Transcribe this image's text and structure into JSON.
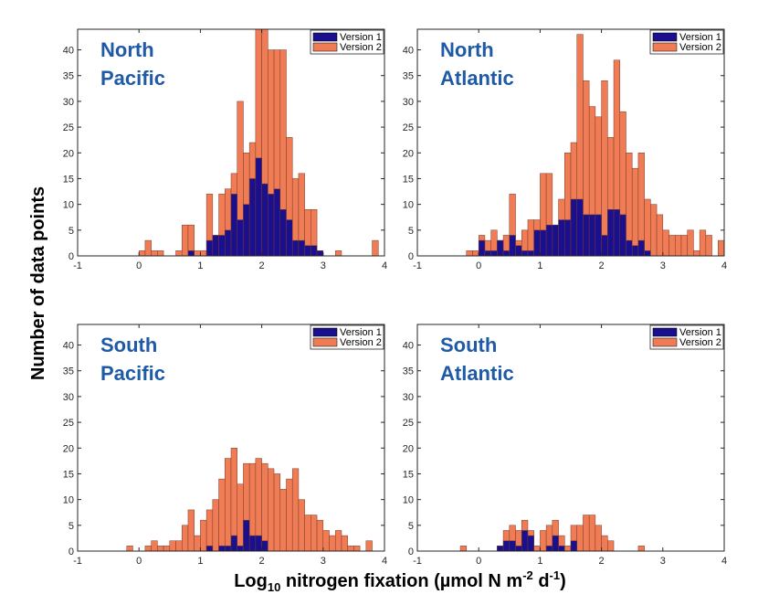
{
  "figure": {
    "ylabel": "Number of data points",
    "xlabel_prefix": "Log",
    "xlabel_sub": "10",
    "xlabel_mid": " nitrogen fixation (µmol N m",
    "xlabel_sup1": "-2",
    "xlabel_mid2": " d",
    "xlabel_sup2": "-1",
    "xlabel_end": ")"
  },
  "colors": {
    "version1": "#1a0f8c",
    "version2": "#f07c55",
    "bar_edge": "#7a3b28",
    "region_title": "#1f5aa6"
  },
  "legend": {
    "version1": "Version 1",
    "version2": "Version 2"
  },
  "chart_data": [
    {
      "type": "bar",
      "title_line1": "North",
      "title_line2": "Pacific",
      "xlim": [
        -1,
        4
      ],
      "ylim": [
        0,
        44
      ],
      "bin_width": 0.1,
      "xticks": [
        "-1",
        "0",
        "1",
        "2",
        "3",
        "4"
      ],
      "yticks": [
        "0",
        "5",
        "10",
        "15",
        "20",
        "25",
        "30",
        "35",
        "40"
      ],
      "series": [
        {
          "name": "Version 2",
          "bins": [
            [
              0.0,
              1
            ],
            [
              0.1,
              3
            ],
            [
              0.2,
              1
            ],
            [
              0.3,
              1
            ],
            [
              0.6,
              1
            ],
            [
              0.7,
              6
            ],
            [
              0.8,
              6
            ],
            [
              0.9,
              1
            ],
            [
              1.0,
              1
            ],
            [
              1.1,
              12
            ],
            [
              1.2,
              4
            ],
            [
              1.3,
              12
            ],
            [
              1.4,
              13
            ],
            [
              1.5,
              16
            ],
            [
              1.6,
              30
            ],
            [
              1.7,
              20
            ],
            [
              1.8,
              22
            ],
            [
              1.9,
              44
            ],
            [
              2.0,
              44
            ],
            [
              2.1,
              40
            ],
            [
              2.2,
              40
            ],
            [
              2.3,
              40
            ],
            [
              2.4,
              23
            ],
            [
              2.5,
              15
            ],
            [
              2.6,
              16
            ],
            [
              2.7,
              9
            ],
            [
              2.8,
              9
            ],
            [
              2.9,
              1
            ],
            [
              3.2,
              1
            ],
            [
              3.8,
              3
            ]
          ]
        },
        {
          "name": "Version 1",
          "bins": [
            [
              0.8,
              1
            ],
            [
              1.1,
              3
            ],
            [
              1.2,
              4
            ],
            [
              1.3,
              4
            ],
            [
              1.4,
              5
            ],
            [
              1.5,
              12
            ],
            [
              1.6,
              7
            ],
            [
              1.7,
              10
            ],
            [
              1.8,
              15
            ],
            [
              1.9,
              19
            ],
            [
              2.0,
              14
            ],
            [
              2.1,
              12
            ],
            [
              2.2,
              13
            ],
            [
              2.3,
              9
            ],
            [
              2.4,
              7
            ],
            [
              2.5,
              3
            ],
            [
              2.6,
              3
            ],
            [
              2.7,
              2
            ],
            [
              2.8,
              2
            ],
            [
              2.9,
              1
            ]
          ]
        }
      ]
    },
    {
      "type": "bar",
      "title_line1": "North",
      "title_line2": "Atlantic",
      "xlim": [
        -1,
        4
      ],
      "ylim": [
        0,
        44
      ],
      "bin_width": 0.1,
      "xticks": [
        "-1",
        "0",
        "1",
        "2",
        "3",
        "4"
      ],
      "yticks": [
        "0",
        "5",
        "10",
        "15",
        "20",
        "25",
        "30",
        "35",
        "40"
      ],
      "series": [
        {
          "name": "Version 2",
          "bins": [
            [
              -0.2,
              1
            ],
            [
              -0.1,
              1
            ],
            [
              0.0,
              4
            ],
            [
              0.1,
              3
            ],
            [
              0.2,
              5
            ],
            [
              0.3,
              3
            ],
            [
              0.4,
              4
            ],
            [
              0.5,
              12
            ],
            [
              0.6,
              3
            ],
            [
              0.7,
              5
            ],
            [
              0.8,
              7
            ],
            [
              0.9,
              7
            ],
            [
              1.0,
              16
            ],
            [
              1.1,
              16
            ],
            [
              1.2,
              6
            ],
            [
              1.3,
              11
            ],
            [
              1.4,
              20
            ],
            [
              1.5,
              22
            ],
            [
              1.6,
              43
            ],
            [
              1.7,
              34
            ],
            [
              1.8,
              29
            ],
            [
              1.9,
              27
            ],
            [
              2.0,
              34
            ],
            [
              2.1,
              23
            ],
            [
              2.2,
              38
            ],
            [
              2.3,
              28
            ],
            [
              2.4,
              20
            ],
            [
              2.5,
              17
            ],
            [
              2.6,
              20
            ],
            [
              2.7,
              11
            ],
            [
              2.8,
              10
            ],
            [
              2.9,
              8
            ],
            [
              3.0,
              5
            ],
            [
              3.1,
              4
            ],
            [
              3.2,
              4
            ],
            [
              3.3,
              4
            ],
            [
              3.4,
              5
            ],
            [
              3.5,
              1
            ],
            [
              3.6,
              5
            ],
            [
              3.7,
              4
            ],
            [
              3.9,
              3
            ]
          ]
        },
        {
          "name": "Version 1",
          "bins": [
            [
              0.0,
              3
            ],
            [
              0.1,
              1
            ],
            [
              0.2,
              1
            ],
            [
              0.3,
              3
            ],
            [
              0.4,
              1
            ],
            [
              0.5,
              4
            ],
            [
              0.6,
              2
            ],
            [
              0.7,
              1
            ],
            [
              0.8,
              1
            ],
            [
              0.9,
              5
            ],
            [
              1.0,
              5
            ],
            [
              1.1,
              6
            ],
            [
              1.2,
              6
            ],
            [
              1.3,
              7
            ],
            [
              1.4,
              7
            ],
            [
              1.5,
              11
            ],
            [
              1.6,
              11
            ],
            [
              1.7,
              8
            ],
            [
              1.8,
              8
            ],
            [
              1.9,
              8
            ],
            [
              2.0,
              4
            ],
            [
              2.1,
              9
            ],
            [
              2.2,
              9
            ],
            [
              2.3,
              8
            ],
            [
              2.4,
              3
            ],
            [
              2.5,
              2
            ],
            [
              2.6,
              3
            ],
            [
              2.7,
              1
            ]
          ]
        }
      ]
    },
    {
      "type": "bar",
      "title_line1": "South",
      "title_line2": "Pacific",
      "xlim": [
        -1,
        4
      ],
      "ylim": [
        0,
        44
      ],
      "bin_width": 0.1,
      "xticks": [
        "-1",
        "0",
        "1",
        "2",
        "3",
        "4"
      ],
      "yticks": [
        "0",
        "5",
        "10",
        "15",
        "20",
        "25",
        "30",
        "35",
        "40"
      ],
      "series": [
        {
          "name": "Version 2",
          "bins": [
            [
              -0.2,
              1
            ],
            [
              0.1,
              1
            ],
            [
              0.2,
              2
            ],
            [
              0.3,
              1
            ],
            [
              0.4,
              1
            ],
            [
              0.5,
              2
            ],
            [
              0.6,
              2
            ],
            [
              0.7,
              5
            ],
            [
              0.8,
              8
            ],
            [
              0.9,
              3
            ],
            [
              1.0,
              6
            ],
            [
              1.1,
              8
            ],
            [
              1.2,
              10
            ],
            [
              1.3,
              14
            ],
            [
              1.4,
              18
            ],
            [
              1.5,
              20
            ],
            [
              1.6,
              13
            ],
            [
              1.7,
              17
            ],
            [
              1.8,
              17
            ],
            [
              1.9,
              18
            ],
            [
              2.0,
              17
            ],
            [
              2.1,
              16
            ],
            [
              2.2,
              15
            ],
            [
              2.3,
              12
            ],
            [
              2.4,
              14
            ],
            [
              2.5,
              16
            ],
            [
              2.6,
              10
            ],
            [
              2.7,
              7
            ],
            [
              2.8,
              7
            ],
            [
              2.9,
              6
            ],
            [
              3.0,
              4
            ],
            [
              3.1,
              3
            ],
            [
              3.2,
              4
            ],
            [
              3.3,
              3
            ],
            [
              3.4,
              1
            ],
            [
              3.5,
              1
            ],
            [
              3.7,
              2
            ]
          ]
        },
        {
          "name": "Version 1",
          "bins": [
            [
              1.1,
              1
            ],
            [
              1.3,
              1
            ],
            [
              1.4,
              1
            ],
            [
              1.5,
              3
            ],
            [
              1.6,
              1
            ],
            [
              1.7,
              6
            ],
            [
              1.8,
              3
            ],
            [
              1.9,
              3
            ],
            [
              2.0,
              2
            ]
          ]
        }
      ]
    },
    {
      "type": "bar",
      "title_line1": "South",
      "title_line2": "Atlantic",
      "xlim": [
        -1,
        4
      ],
      "ylim": [
        0,
        44
      ],
      "bin_width": 0.1,
      "xticks": [
        "-1",
        "0",
        "1",
        "2",
        "3",
        "4"
      ],
      "yticks": [
        "0",
        "5",
        "10",
        "15",
        "20",
        "25",
        "30",
        "35",
        "40"
      ],
      "series": [
        {
          "name": "Version 2",
          "bins": [
            [
              -0.3,
              1
            ],
            [
              0.3,
              1
            ],
            [
              0.4,
              4
            ],
            [
              0.5,
              5
            ],
            [
              0.6,
              4
            ],
            [
              0.7,
              6
            ],
            [
              0.8,
              4
            ],
            [
              0.9,
              1
            ],
            [
              1.0,
              4
            ],
            [
              1.1,
              5
            ],
            [
              1.2,
              6
            ],
            [
              1.3,
              3
            ],
            [
              1.4,
              1
            ],
            [
              1.5,
              5
            ],
            [
              1.6,
              5
            ],
            [
              1.7,
              7
            ],
            [
              1.8,
              7
            ],
            [
              1.9,
              5
            ],
            [
              2.0,
              3
            ],
            [
              2.1,
              2
            ],
            [
              2.6,
              1
            ]
          ]
        },
        {
          "name": "Version 1",
          "bins": [
            [
              0.3,
              1
            ],
            [
              0.4,
              2
            ],
            [
              0.5,
              2
            ],
            [
              0.6,
              1
            ],
            [
              0.7,
              4
            ],
            [
              0.8,
              3
            ],
            [
              1.1,
              1
            ],
            [
              1.2,
              3
            ],
            [
              1.3,
              1
            ],
            [
              1.5,
              2
            ]
          ]
        }
      ]
    }
  ]
}
